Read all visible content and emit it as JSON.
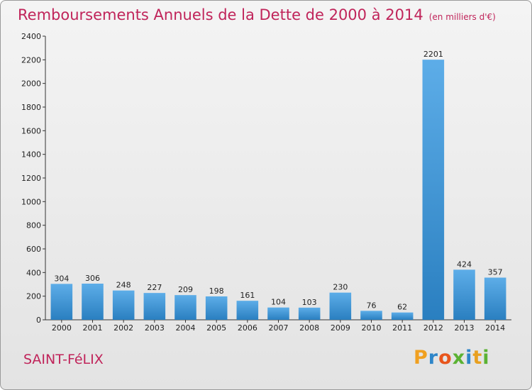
{
  "header": {
    "title": "Remboursements Annuels de la Dette de 2000 à 2014",
    "subtitle": "(en milliers d'€)"
  },
  "footer": {
    "commune": "SAINT-FéLIX",
    "logo": [
      "P",
      "r",
      "o",
      "x",
      "i",
      "t",
      "i"
    ]
  },
  "colors": {
    "accent": "#c0245a",
    "bar_light": "#5dade8",
    "bar_dark": "#2a7fc0"
  },
  "chart_data": {
    "type": "bar",
    "title": "Remboursements Annuels de la Dette de 2000 à 2014",
    "subtitle": "(en milliers d'€)",
    "categories": [
      "2000",
      "2001",
      "2002",
      "2003",
      "2004",
      "2005",
      "2006",
      "2007",
      "2008",
      "2009",
      "2010",
      "2011",
      "2012",
      "2013",
      "2014"
    ],
    "values": [
      304,
      306,
      248,
      227,
      209,
      198,
      161,
      104,
      103,
      230,
      76,
      62,
      2201,
      424,
      357
    ],
    "ylim": [
      0,
      2400
    ],
    "yticks": [
      0,
      200,
      400,
      600,
      800,
      1000,
      1200,
      1400,
      1600,
      1800,
      2000,
      2200,
      2400
    ],
    "grid": false,
    "legend": "none"
  }
}
